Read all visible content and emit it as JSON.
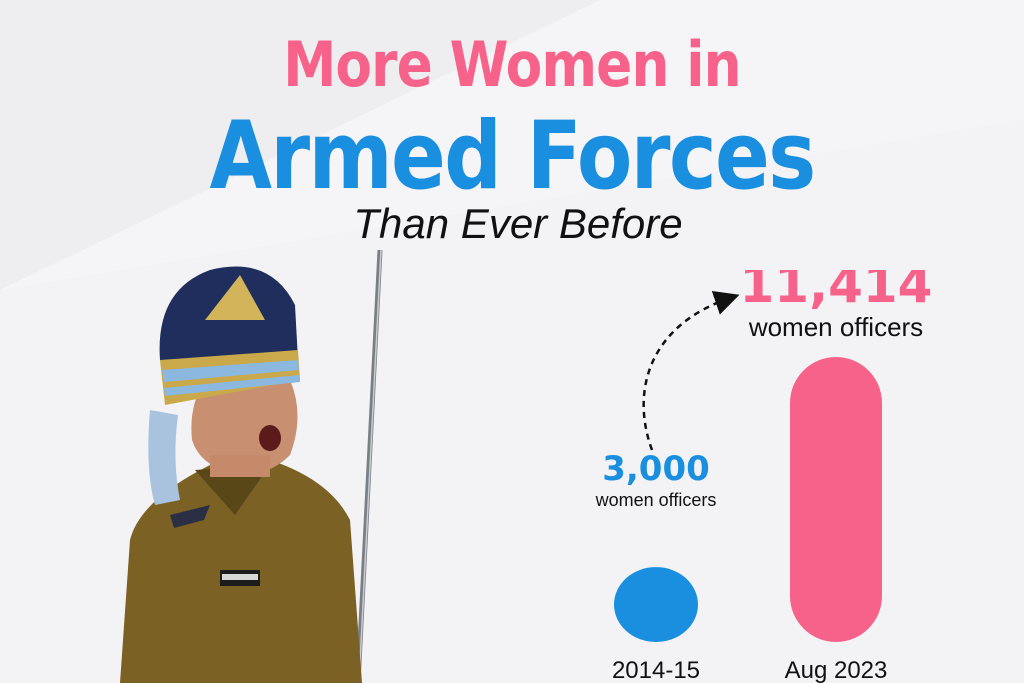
{
  "header": {
    "line1": "More Women in",
    "line2": "Armed Forces",
    "subtitle": "Than Ever Before"
  },
  "colors": {
    "pink": "#f7628a",
    "blue": "#1a8fe0",
    "text": "#111111"
  },
  "chart_data": {
    "type": "bar",
    "categories": [
      "2014-15",
      "Aug 2023"
    ],
    "values": [
      3000,
      11414
    ],
    "value_labels": [
      "3,000",
      "11,414"
    ],
    "unit_label": "women officers",
    "bar_colors": [
      "#1a8fe0",
      "#f7628a"
    ],
    "title": "",
    "xlabel": "",
    "ylabel": "",
    "grid": false,
    "annotations": [
      "dashed arrow from 2014-15 to Aug 2023"
    ]
  }
}
